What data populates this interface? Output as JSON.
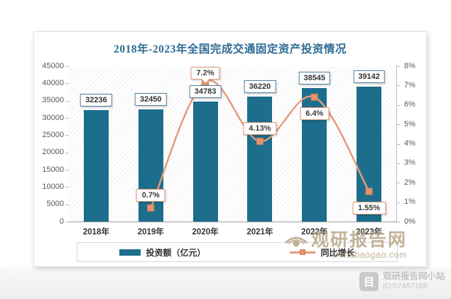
{
  "title": "2018年-2023年全国完成交通固定资产投资情况",
  "chart_data": {
    "type": "bar+line",
    "categories": [
      "2018年",
      "2019年",
      "2020年",
      "2021年",
      "2022年",
      "2023年"
    ],
    "series": [
      {
        "name": "投资额（亿元）",
        "type": "bar",
        "values": [
          32236,
          32450,
          34783,
          36220,
          38545,
          39142
        ],
        "labels": [
          "32236",
          "32450",
          "34783",
          "36220",
          "38545",
          "39142"
        ],
        "color": "#1d6e8c"
      },
      {
        "name": "同比增长",
        "type": "line",
        "values": [
          null,
          0.7,
          7.2,
          4.13,
          6.4,
          1.55
        ],
        "labels": [
          "",
          "0.7%",
          "7.2%",
          "4.13%",
          "6.4%",
          "1.55%"
        ],
        "label_pos": [
          "",
          "above",
          "callout",
          "above",
          "below",
          "below"
        ],
        "color": "#e39b7d"
      }
    ],
    "left_axis": {
      "min": 0,
      "max": 45000,
      "ticks": [
        "45000",
        "40000",
        "35000",
        "30000",
        "25000",
        "20000",
        "15000",
        "10000",
        "5000",
        "0"
      ]
    },
    "right_axis": {
      "min": 0,
      "max": 8,
      "ticks": [
        "8%",
        "7%",
        "6%",
        "5%",
        "4%",
        "3%",
        "2%",
        "1%",
        "0%"
      ]
    },
    "legend_position": "bottom",
    "grid": "diagonal-hatch",
    "line_starts_at": "2019年"
  },
  "colors": {
    "bar": "#1d6e8c",
    "line": "#e39b7d",
    "marker_fill": "#e1946e",
    "marker_stroke": "#cf8257",
    "title": "#2d6b95"
  },
  "watermark": {
    "name": "观研报告网",
    "domain": "chinabaogao.com"
  },
  "badge": {
    "site": "观研报告网小站",
    "id_text": "ID:57467168",
    "logo_glyph": "目"
  }
}
